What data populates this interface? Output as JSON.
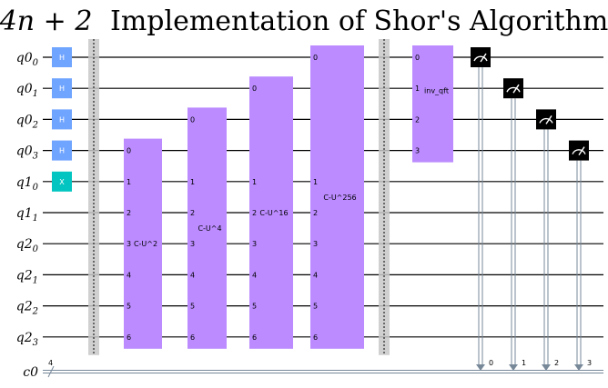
{
  "title": {
    "prefix": "4n + 2",
    "suffix": "Implementation of Shor's Algorithm"
  },
  "qubits": [
    {
      "reg": "q0",
      "idx": "0"
    },
    {
      "reg": "q0",
      "idx": "1"
    },
    {
      "reg": "q0",
      "idx": "2"
    },
    {
      "reg": "q0",
      "idx": "3"
    },
    {
      "reg": "q1",
      "idx": "0"
    },
    {
      "reg": "q1",
      "idx": "1"
    },
    {
      "reg": "q2",
      "idx": "0"
    },
    {
      "reg": "q2",
      "idx": "1"
    },
    {
      "reg": "q2",
      "idx": "2"
    },
    {
      "reg": "q2",
      "idx": "3"
    }
  ],
  "classical": {
    "label": "c0",
    "bits": "4"
  },
  "single_gates": [
    {
      "label": "H",
      "qubit": 0,
      "color": "#6fa4ff"
    },
    {
      "label": "H",
      "qubit": 1,
      "color": "#6fa4ff"
    },
    {
      "label": "H",
      "qubit": 2,
      "color": "#6fa4ff"
    },
    {
      "label": "H",
      "qubit": 3,
      "color": "#6fa4ff"
    },
    {
      "label": "X",
      "qubit": 4,
      "color": "#02c5c1"
    }
  ],
  "controlled_gates": [
    {
      "label": "C-U^2",
      "control": 3,
      "control_label": "0",
      "targets": [
        "1",
        "2",
        "3",
        "4",
        "5",
        "6"
      ],
      "color": "#bb8bff"
    },
    {
      "label": "C-U^4",
      "control": 2,
      "control_label": "0",
      "targets": [
        "1",
        "2",
        "3",
        "4",
        "5",
        "6"
      ],
      "color": "#bb8bff"
    },
    {
      "label": "C-U^16",
      "control": 1,
      "control_label": "0",
      "targets": [
        "1",
        "2",
        "3",
        "4",
        "5",
        "6"
      ],
      "color": "#bb8bff"
    },
    {
      "label": "C-U^256",
      "control": 0,
      "control_label": "0",
      "targets": [
        "1",
        "2",
        "3",
        "4",
        "5",
        "6"
      ],
      "color": "#bb8bff"
    }
  ],
  "qft": {
    "label": "inv_qft",
    "inputs": [
      "0",
      "1",
      "2",
      "3"
    ],
    "color": "#bb8bff"
  },
  "measurements": [
    {
      "qubit": 0,
      "bit": "0"
    },
    {
      "qubit": 1,
      "bit": "1"
    },
    {
      "qubit": 2,
      "bit": "2"
    },
    {
      "qubit": 3,
      "bit": "3"
    }
  ],
  "colors": {
    "barrier": "#c8c8c8",
    "measure_box": "#000000",
    "classical_wire": "#778899"
  },
  "icons": {
    "measure": "meter-icon"
  }
}
